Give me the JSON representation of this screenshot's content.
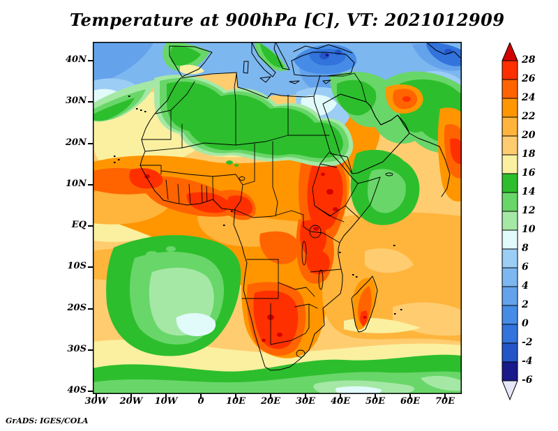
{
  "title": "Temperature at 900hPa [C], VT: 2021012909",
  "credit": "GrADS: IGES/COLA",
  "axes": {
    "lat_ticks": [
      "40N",
      "30N",
      "20N",
      "10N",
      "EQ",
      "10S",
      "20S",
      "30S",
      "40S"
    ],
    "lon_ticks": [
      "30W",
      "20W",
      "10W",
      "0",
      "10E",
      "20E",
      "30E",
      "40E",
      "50E",
      "60E",
      "70E"
    ]
  },
  "colorbar": {
    "boundary_labels": [
      "28",
      "26",
      "24",
      "22",
      "20",
      "18",
      "16",
      "14",
      "12",
      "10",
      "8",
      "6",
      "4",
      "2",
      "0",
      "-2",
      "-4",
      "-6"
    ],
    "palette": [
      {
        "level": "> 28",
        "color": "#D20000"
      },
      {
        "level": "26-28",
        "color": "#FF3000"
      },
      {
        "level": "24-26",
        "color": "#FF6400"
      },
      {
        "level": "22-24",
        "color": "#FF9600"
      },
      {
        "level": "20-22",
        "color": "#FFB43C"
      },
      {
        "level": "18-20",
        "color": "#FFCD70"
      },
      {
        "level": "16-18",
        "color": "#FAF0A0"
      },
      {
        "level": "14-16",
        "color": "#2DBE2D"
      },
      {
        "level": "12-14",
        "color": "#69D669"
      },
      {
        "level": "10-12",
        "color": "#A5E8A5"
      },
      {
        "level": "8-10",
        "color": "#E1FAFA"
      },
      {
        "level": "6-8",
        "color": "#9BCDF5"
      },
      {
        "level": "4-6",
        "color": "#7DB7F0"
      },
      {
        "level": "2-4",
        "color": "#64A3EB"
      },
      {
        "level": "0-2",
        "color": "#468CE6"
      },
      {
        "level": "-2-0",
        "color": "#3273DC"
      },
      {
        "level": "-4--2",
        "color": "#2355C8"
      },
      {
        "level": "-6--4",
        "color": "#19198C"
      },
      {
        "level": "< -6",
        "color": "#E6E6FA"
      }
    ]
  },
  "chart_data": {
    "type": "heatmap",
    "title": "Temperature at 900hPa [C], VT: 2021012909",
    "variable": "Temperature",
    "pressure_level_hPa": 900,
    "units": "C",
    "valid_time": "2021012909",
    "projection": "lat-lon",
    "x_axis": {
      "label": "longitude",
      "ticks": [
        "30W",
        "20W",
        "10W",
        "0",
        "10E",
        "20E",
        "30E",
        "40E",
        "50E",
        "60E",
        "70E"
      ]
    },
    "y_axis": {
      "label": "latitude",
      "ticks": [
        "40N",
        "30N",
        "20N",
        "10N",
        "EQ",
        "10S",
        "20S",
        "30S",
        "40S"
      ]
    },
    "contour_interval": 2,
    "fill_levels": [
      -6,
      -4,
      -2,
      0,
      2,
      4,
      6,
      8,
      10,
      12,
      14,
      16,
      18,
      20,
      22,
      24,
      26,
      28
    ],
    "colorbar_position": "right",
    "grid": false,
    "regions_summary": [
      "Cold air -6 to 8C over Mediterranean, Aegean, Black Sea and Turkey; coldest (below -4C) over eastern Anatolia",
      "Pale blue 4-10C over Egypt and the eastern Mediterranean coast",
      "Green 10-16C band across the Atlas, central Algeria-Libya, northern Sudan, the Levant, Zagros and Afghanistan",
      "Green 10-16C pool over the Arabian Sea / Gulf of Aden",
      "Hot 24-30C along the Sahel from Senegal to Nigeria and Cameroon",
      "Hot core 26-30C over Sudan, Eritrea, Ethiopia and both Red Sea coasts",
      "Hot 24-28C over Uganda, Kenya and Tanzania around Lake Victoria",
      "Hot core 26-30C over Namibia, Botswana and interior Madagascar",
      "Cool pool 6-14C in the south-east Atlantic off Namibia",
      "Cool 10-16C band along 35-40S across the southern oceans",
      "Amber 18-22C over the tropical Indian and Atlantic oceans"
    ]
  }
}
